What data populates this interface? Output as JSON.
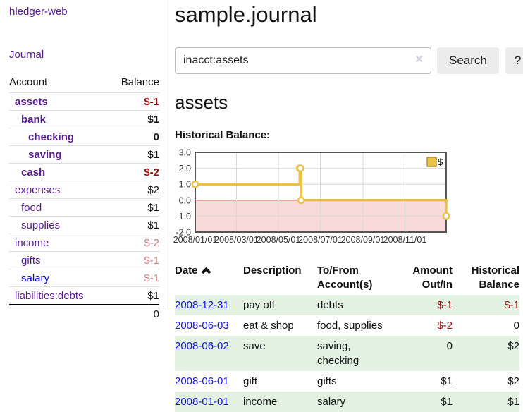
{
  "sidebar": {
    "app_title": "hledger-web",
    "journal_link": "Journal",
    "accounts": {
      "headers": {
        "account": "Account",
        "balance": "Balance"
      },
      "rows": [
        {
          "name": "assets",
          "balance": "$-1",
          "level": 1,
          "bold": true
        },
        {
          "name": "bank",
          "balance": "$1",
          "level": 2,
          "bold": true
        },
        {
          "name": "checking",
          "balance": "0",
          "level": 3,
          "bold": true
        },
        {
          "name": "saving",
          "balance": "$1",
          "level": 3,
          "bold": true
        },
        {
          "name": "cash",
          "balance": "$-2",
          "level": 2,
          "bold": true
        },
        {
          "name": "expenses",
          "balance": "$2",
          "level": 1,
          "bold": false
        },
        {
          "name": "food",
          "balance": "$1",
          "level": 2,
          "bold": false
        },
        {
          "name": "supplies",
          "balance": "$1",
          "level": 2,
          "bold": false
        },
        {
          "name": "income",
          "balance": "$-2",
          "level": 1,
          "bold": false
        },
        {
          "name": "gifts",
          "balance": "$-1",
          "level": 2,
          "bold": false
        },
        {
          "name": "salary",
          "balance": "$-1",
          "level": 2,
          "bold": false,
          "link_style": "blue"
        },
        {
          "name": "liabilities:debts",
          "balance": "$1",
          "level": 1,
          "bold": false
        }
      ],
      "total": "0"
    }
  },
  "main": {
    "title": "sample.journal",
    "search": {
      "value": "inacct:assets",
      "clear_icon": "✕",
      "search_button": "Search",
      "help_button": "?"
    },
    "account_heading": "assets",
    "chart_heading": "Historical Balance:",
    "chart_data": {
      "type": "line",
      "title": "Historical Balance:",
      "legend": [
        {
          "label": "$"
        }
      ],
      "ylim": [
        -2,
        3
      ],
      "ytick_labels": [
        "3.0",
        "2.0",
        "1.0",
        "0.0",
        "-1.0",
        "-2.0"
      ],
      "xtick_labels": [
        "2008/01/01",
        "2008/03/01",
        "2008/05/01",
        "2008/07/01",
        "2008/09/01",
        "2008/11/01"
      ],
      "series": [
        {
          "name": "$",
          "points": [
            [
              "2008-01-01",
              1
            ],
            [
              "2008-06-01",
              2
            ],
            [
              "2008-06-02",
              2
            ],
            [
              "2008-06-03",
              0
            ],
            [
              "2008-12-31",
              -1
            ]
          ]
        }
      ],
      "grid": true,
      "legend_position": "top-right",
      "colors": {
        "line": "#e8c24d",
        "marker_fill": "#ffffff",
        "negative_fill": "#f9dada",
        "zero_line": "#a31515",
        "grid": "#d9d9d9",
        "border": "#555555",
        "legend_border": "#b8922a",
        "tick_text": "#333333"
      }
    },
    "register": {
      "headers": {
        "date": "Date",
        "description": "Description",
        "accounts": "To/From\nAccount(s)",
        "amount": "Amount\nOut/In",
        "balance": "Historical\nBalance"
      },
      "rows": [
        {
          "date": "2008-12-31",
          "description": "pay off",
          "accounts": "debts",
          "amount": "$-1",
          "balance": "$-1"
        },
        {
          "date": "2008-06-03",
          "description": "eat & shop",
          "accounts": "food, supplies",
          "amount": "$-2",
          "balance": "0"
        },
        {
          "date": "2008-06-02",
          "description": "save",
          "accounts": "saving, checking",
          "amount": "0",
          "balance": "$2"
        },
        {
          "date": "2008-06-01",
          "description": "gift",
          "accounts": "gifts",
          "amount": "$1",
          "balance": "$2"
        },
        {
          "date": "2008-01-01",
          "description": "income",
          "accounts": "salary",
          "amount": "$1",
          "balance": "$1"
        }
      ]
    }
  }
}
